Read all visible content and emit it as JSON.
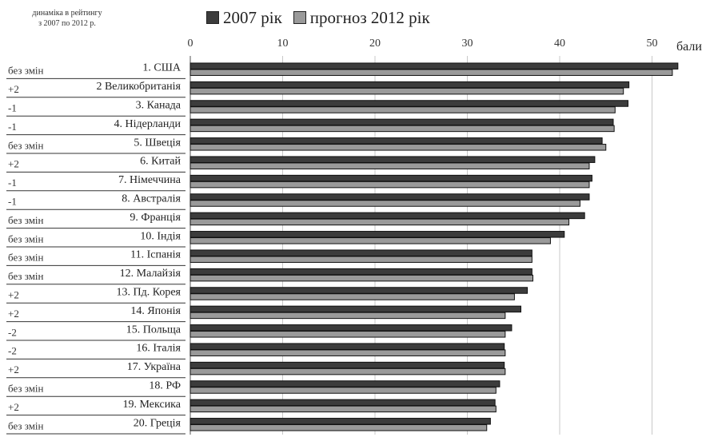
{
  "chart_data": {
    "type": "bar",
    "orientation": "horizontal",
    "corner_note": [
      "динаміка в рейтингу",
      "з 2007 по 2012 р."
    ],
    "xunit": "бали",
    "xlim": [
      0,
      55
    ],
    "xticks": [
      "0",
      "10",
      "20",
      "30",
      "40",
      "50"
    ],
    "grid": true,
    "legend_position": "top",
    "categories": [
      "1. США",
      "2 Великобританія",
      "3. Канада",
      "4. Нідерланди",
      "5. Швеція",
      "6. Китай",
      "7. Німеччина",
      "8. Австралія",
      "9. Франція",
      "10. Індія",
      "11. Іспанія",
      "12. Малайзія",
      "13. Пд. Корея",
      "14. Японія",
      "15. Польща",
      "16. Італія",
      "17. Україна",
      "18. РФ",
      "19. Мексика",
      "20. Греція"
    ],
    "ranking_change": [
      "без змін",
      "+2",
      "-1",
      "-1",
      "без змін",
      "+2",
      "-1",
      "-1",
      "без змін",
      "без змін",
      "без змін",
      "без змін",
      "+2",
      "+2",
      "-2",
      "-2",
      "+2",
      "без змін",
      "+2",
      "без змін"
    ],
    "series": [
      {
        "name": "2007 рік",
        "color": "#3c3c3c",
        "values": [
          52.8,
          47.5,
          47.4,
          45.8,
          44.6,
          43.8,
          43.5,
          43.2,
          42.7,
          40.5,
          37.0,
          37.0,
          36.5,
          35.8,
          34.8,
          34.0,
          34.0,
          33.5,
          33.0,
          32.5
        ]
      },
      {
        "name": "прогноз 2012 рік",
        "color": "#9a9a9a",
        "values": [
          52.2,
          46.9,
          46.0,
          45.9,
          45.0,
          43.2,
          43.2,
          42.2,
          41.0,
          39.0,
          37.0,
          37.1,
          35.1,
          34.1,
          34.1,
          34.1,
          34.1,
          33.1,
          33.1,
          32.1
        ]
      }
    ]
  }
}
